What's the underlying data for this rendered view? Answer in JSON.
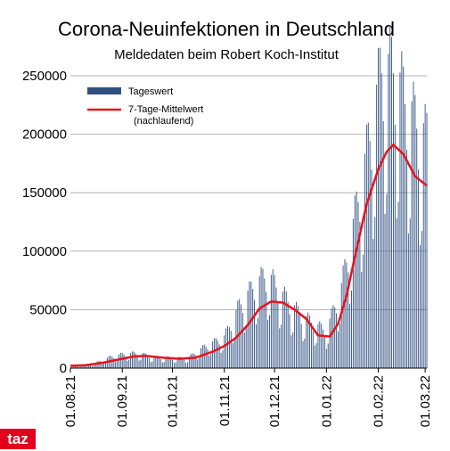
{
  "branding": {
    "logo_text": "taz",
    "logo_color": "#e3001b"
  },
  "chart_data": {
    "type": "bar",
    "title": "Corona-Neuinfektionen in Deutschland",
    "subtitle": "Meldedaten beim Robert Koch-Institut",
    "xlabel": "",
    "ylabel": "",
    "ylim": [
      0,
      250000
    ],
    "yticks": [
      0,
      50000,
      100000,
      150000,
      200000,
      250000
    ],
    "x_range": [
      "2021-08-01",
      "2022-03-02"
    ],
    "x_ticks": [
      "01.08.21",
      "01.09.21",
      "01.10.21",
      "01.11.21",
      "01.12.21",
      "01.01.22",
      "01.02.22",
      "01.03.22"
    ],
    "grid": "horizontal",
    "legend_position": "top-left",
    "colors": {
      "bars": "#2f4f82",
      "line": "#e8121b",
      "grid": "#b3b3b3"
    },
    "series": [
      {
        "name": "Tageswert",
        "type": "bar",
        "points": [
          [
            "2021-08-01",
            1500
          ],
          [
            "2021-08-15",
            3500
          ],
          [
            "2021-08-25",
            9000
          ],
          [
            "2021-09-01",
            11000
          ],
          [
            "2021-09-10",
            12000
          ],
          [
            "2021-09-20",
            9000
          ],
          [
            "2021-10-01",
            8000
          ],
          [
            "2021-10-10",
            8000
          ],
          [
            "2021-10-20",
            17000
          ],
          [
            "2021-11-01",
            25000
          ],
          [
            "2021-11-10",
            50000
          ],
          [
            "2021-11-20",
            68000
          ],
          [
            "2021-11-27",
            75000
          ],
          [
            "2021-12-05",
            60000
          ],
          [
            "2021-12-15",
            45000
          ],
          [
            "2021-12-25",
            35000
          ],
          [
            "2022-01-01",
            30000
          ],
          [
            "2022-01-10",
            65000
          ],
          [
            "2022-01-20",
            135000
          ],
          [
            "2022-01-27",
            185000
          ],
          [
            "2022-02-03",
            240000
          ],
          [
            "2022-02-10",
            240000
          ],
          [
            "2022-02-17",
            215000
          ],
          [
            "2022-02-24",
            195000
          ],
          [
            "2022-03-01",
            185000
          ]
        ]
      },
      {
        "name": "7-Tage-Mittelwert",
        "note": "(nachlaufend)",
        "type": "line",
        "points": [
          [
            "2021-08-01",
            2000
          ],
          [
            "2021-08-10",
            2500
          ],
          [
            "2021-08-20",
            4500
          ],
          [
            "2021-09-01",
            8000
          ],
          [
            "2021-09-08",
            10000
          ],
          [
            "2021-09-15",
            10500
          ],
          [
            "2021-09-25",
            9000
          ],
          [
            "2021-10-05",
            8000
          ],
          [
            "2021-10-15",
            9000
          ],
          [
            "2021-10-25",
            14000
          ],
          [
            "2021-11-01",
            19000
          ],
          [
            "2021-11-08",
            26000
          ],
          [
            "2021-11-15",
            37000
          ],
          [
            "2021-11-22",
            51000
          ],
          [
            "2021-11-29",
            57000
          ],
          [
            "2021-12-06",
            56000
          ],
          [
            "2021-12-13",
            50000
          ],
          [
            "2021-12-20",
            42000
          ],
          [
            "2021-12-27",
            28000
          ],
          [
            "2022-01-03",
            27000
          ],
          [
            "2022-01-08",
            38000
          ],
          [
            "2022-01-13",
            62000
          ],
          [
            "2022-01-18",
            95000
          ],
          [
            "2022-01-25",
            140000
          ],
          [
            "2022-02-01",
            170000
          ],
          [
            "2022-02-06",
            185000
          ],
          [
            "2022-02-10",
            191000
          ],
          [
            "2022-02-16",
            183000
          ],
          [
            "2022-02-23",
            164000
          ],
          [
            "2022-03-02",
            156000
          ]
        ]
      }
    ]
  }
}
